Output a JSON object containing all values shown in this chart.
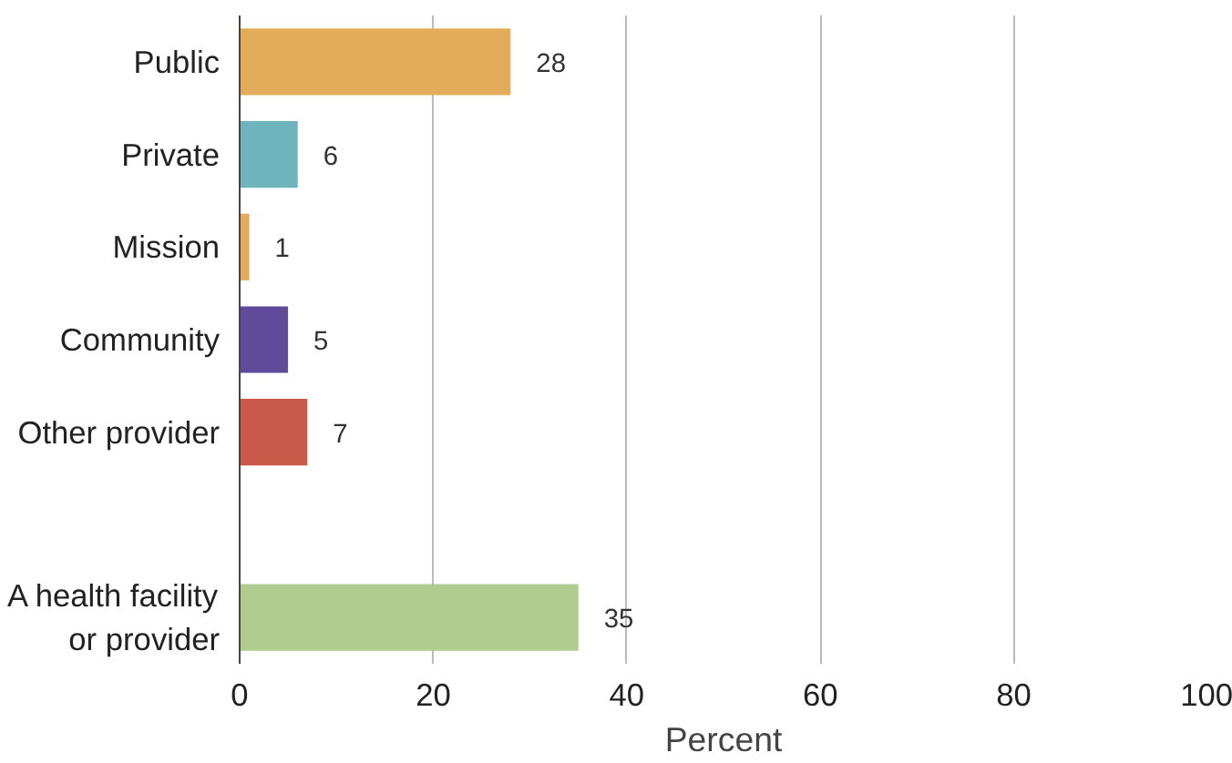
{
  "chart_data": {
    "type": "bar",
    "orientation": "horizontal",
    "xlabel": "Percent",
    "categories": [
      "Public",
      "Private",
      "Mission",
      "Community",
      "Other provider",
      null,
      "A health facility\nor provider"
    ],
    "values": [
      28,
      6,
      1,
      5,
      7,
      null,
      35
    ],
    "colors": [
      "#e3ac5a",
      "#6fb3bf",
      "#e3ac5a",
      "#5f4b9a",
      "#c95a4a",
      "#ffffff",
      "#b0cc8f"
    ],
    "xlim": [
      0,
      100
    ],
    "xticks": [
      0,
      20,
      40,
      60,
      80,
      100
    ],
    "grid": "x",
    "data_labels": true
  }
}
